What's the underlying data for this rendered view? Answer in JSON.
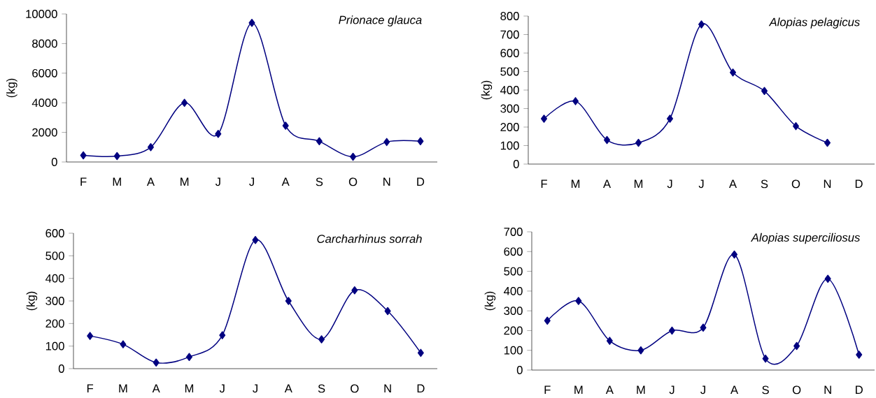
{
  "chart_data": [
    {
      "type": "line",
      "title": "Prionace glauca",
      "ylabel": "(kg)",
      "categories": [
        "F",
        "M",
        "A",
        "M",
        "J",
        "J",
        "A",
        "S",
        "O",
        "N",
        "D"
      ],
      "values": [
        450,
        400,
        1000,
        4000,
        1900,
        9400,
        2450,
        1400,
        350,
        1350,
        1400
      ],
      "color": "#000080",
      "marker": "diamond",
      "ylim": [
        0,
        10000
      ],
      "yticks": [
        0,
        2000,
        4000,
        6000,
        8000,
        10000
      ]
    },
    {
      "type": "line",
      "title": "Alopias pelagicus",
      "ylabel": "(kg)",
      "categories": [
        "F",
        "M",
        "A",
        "M",
        "J",
        "J",
        "A",
        "S",
        "O",
        "N",
        "D"
      ],
      "values": [
        245,
        340,
        130,
        115,
        245,
        755,
        495,
        395,
        205,
        115,
        null
      ],
      "color": "#000080",
      "marker": "diamond",
      "ylim": [
        0,
        800
      ],
      "yticks": [
        0,
        100,
        200,
        300,
        400,
        500,
        600,
        700,
        800
      ]
    },
    {
      "type": "line",
      "title": "Carcharhinus sorrah",
      "ylabel": "(kg)",
      "categories": [
        "F",
        "M",
        "A",
        "M",
        "J",
        "J",
        "A",
        "S",
        "O",
        "N",
        "D"
      ],
      "values": [
        145,
        108,
        27,
        52,
        148,
        570,
        300,
        130,
        347,
        255,
        70
      ],
      "color": "#000080",
      "marker": "diamond",
      "ylim": [
        0,
        600
      ],
      "yticks": [
        0,
        100,
        200,
        300,
        400,
        500,
        600
      ]
    },
    {
      "type": "line",
      "title": "Alopias superciliosus",
      "ylabel": "(kg)",
      "categories": [
        "F",
        "M",
        "A",
        "M",
        "J",
        "J",
        "A",
        "S",
        "O",
        "N",
        "D"
      ],
      "values": [
        250,
        350,
        148,
        100,
        200,
        215,
        585,
        58,
        122,
        462,
        78
      ],
      "color": "#000080",
      "marker": "diamond",
      "ylim": [
        0,
        700
      ],
      "yticks": [
        0,
        100,
        200,
        300,
        400,
        500,
        600,
        700
      ]
    }
  ]
}
